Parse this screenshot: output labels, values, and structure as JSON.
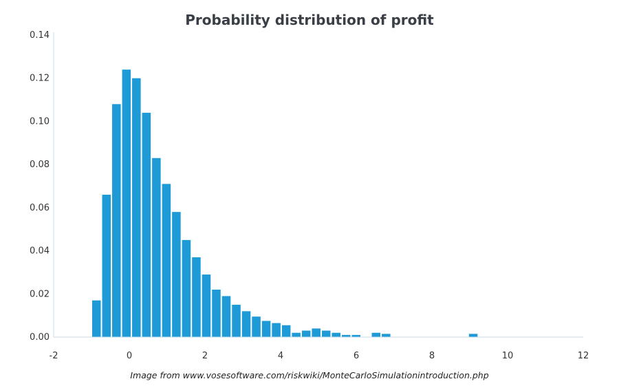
{
  "chart_data": {
    "type": "bar",
    "title": "Probability distribution of profit",
    "xlabel": "",
    "ylabel": "",
    "xlim": [
      -2,
      12
    ],
    "ylim": [
      0,
      0.14
    ],
    "x_ticks": [
      "-2",
      "0",
      "2",
      "4",
      "6",
      "8",
      "10",
      "12"
    ],
    "y_ticks": [
      "0.00",
      "0.02",
      "0.04",
      "0.06",
      "0.08",
      "0.10",
      "0.12",
      "0.14"
    ],
    "grid": false,
    "legend": "none",
    "bar_color": "#1e9bd7",
    "bin_width": 0.264,
    "bins": [
      {
        "x": -1.0,
        "y": 0.017
      },
      {
        "x": -0.736,
        "y": 0.066
      },
      {
        "x": -0.472,
        "y": 0.108
      },
      {
        "x": -0.208,
        "y": 0.124
      },
      {
        "x": 0.056,
        "y": 0.12
      },
      {
        "x": 0.32,
        "y": 0.104
      },
      {
        "x": 0.584,
        "y": 0.083
      },
      {
        "x": 0.848,
        "y": 0.071
      },
      {
        "x": 1.112,
        "y": 0.058
      },
      {
        "x": 1.376,
        "y": 0.045
      },
      {
        "x": 1.64,
        "y": 0.037
      },
      {
        "x": 1.904,
        "y": 0.029
      },
      {
        "x": 2.168,
        "y": 0.022
      },
      {
        "x": 2.432,
        "y": 0.019
      },
      {
        "x": 2.696,
        "y": 0.015
      },
      {
        "x": 2.96,
        "y": 0.012
      },
      {
        "x": 3.224,
        "y": 0.0095
      },
      {
        "x": 3.488,
        "y": 0.0075
      },
      {
        "x": 3.752,
        "y": 0.0065
      },
      {
        "x": 4.016,
        "y": 0.0055
      },
      {
        "x": 4.28,
        "y": 0.002
      },
      {
        "x": 4.544,
        "y": 0.003
      },
      {
        "x": 4.808,
        "y": 0.004
      },
      {
        "x": 5.072,
        "y": 0.003
      },
      {
        "x": 5.336,
        "y": 0.002
      },
      {
        "x": 5.6,
        "y": 0.001
      },
      {
        "x": 5.864,
        "y": 0.001
      },
      {
        "x": 6.392,
        "y": 0.002
      },
      {
        "x": 6.656,
        "y": 0.0015
      },
      {
        "x": 8.96,
        "y": 0.0015
      }
    ]
  },
  "caption": "Image from www.vosesoftware.com/riskwiki/MonteCarloSimulationintroduction.php"
}
